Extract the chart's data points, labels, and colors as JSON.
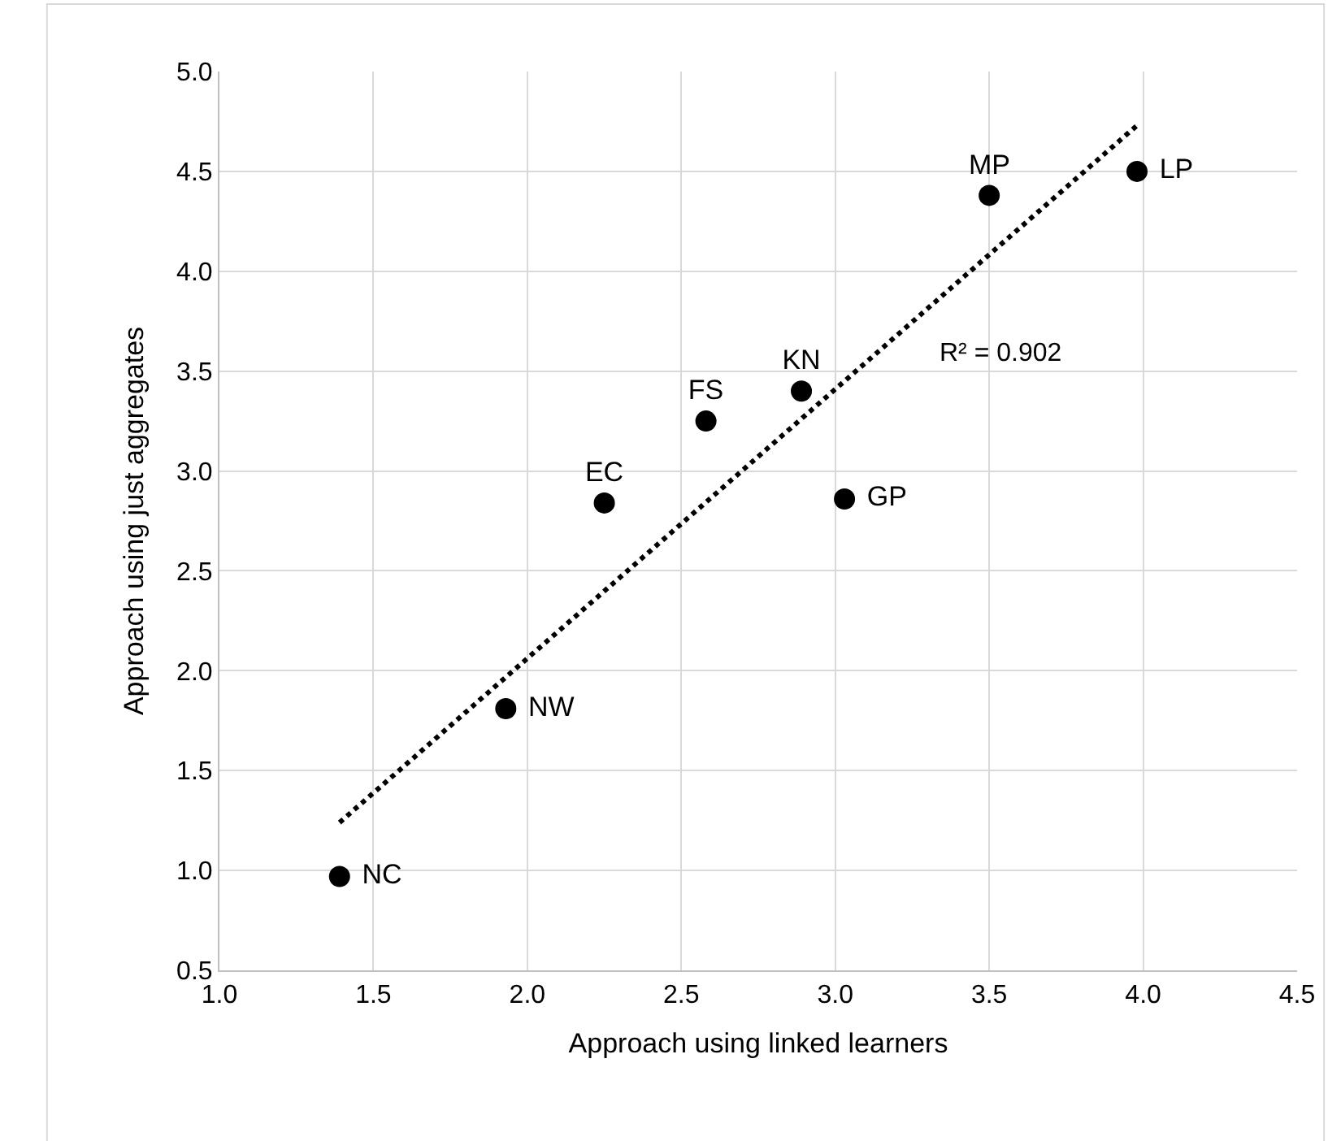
{
  "chart_data": {
    "type": "scatter",
    "xlabel": "Approach using linked learners",
    "ylabel": "Approach using just aggregates",
    "series": [
      {
        "name": "NC",
        "color": "#000000",
        "x": [
          1.39
        ],
        "values": [
          0.97
        ]
      },
      {
        "name": "NW",
        "color": "#000000",
        "x": [
          1.93
        ],
        "values": [
          1.81
        ]
      },
      {
        "name": "EC",
        "color": "#000000",
        "x": [
          2.25
        ],
        "values": [
          2.84
        ]
      },
      {
        "name": "FS",
        "color": "#000000",
        "x": [
          2.58
        ],
        "values": [
          3.25
        ]
      },
      {
        "name": "KN",
        "color": "#000000",
        "x": [
          2.89
        ],
        "values": [
          3.4
        ]
      },
      {
        "name": "GP",
        "color": "#000000",
        "x": [
          3.03
        ],
        "values": [
          2.86
        ]
      },
      {
        "name": "MP",
        "color": "#000000",
        "x": [
          3.5
        ],
        "values": [
          4.38
        ]
      },
      {
        "name": "LP",
        "color": "#000000",
        "x": [
          3.98
        ],
        "values": [
          4.5
        ]
      },
      {
        "type": "line",
        "color": "#000000",
        "line_style": "dotted",
        "marker": "none",
        "x": [
          1.39,
          3.98
        ],
        "values": [
          1.24,
          4.73
        ]
      }
    ],
    "annotations": [
      "R² = 0.902"
    ],
    "xlim": [
      1.0,
      4.5
    ],
    "xticks": [
      {
        "value": 1.0,
        "label": "1.0"
      },
      {
        "value": 1.5,
        "label": "1.5"
      },
      {
        "value": 2.0,
        "label": "2.0"
      },
      {
        "value": 2.5,
        "label": "2.5"
      },
      {
        "value": 3.0,
        "label": "3.0"
      },
      {
        "value": 3.5,
        "label": "3.5"
      },
      {
        "value": 4.0,
        "label": "4.0"
      },
      {
        "value": 4.5,
        "label": "4.5"
      }
    ],
    "ylim": [
      0.5,
      5.0
    ],
    "yticks": [
      0.5,
      {
        "value": 1.0,
        "label": "1.0"
      },
      1.5,
      {
        "value": 2.0,
        "label": "2.0"
      },
      2.5,
      {
        "value": 3.0,
        "label": "3.0"
      },
      3.5,
      {
        "value": 4.0,
        "label": "4.0"
      },
      4.5,
      {
        "value": 5.0,
        "label": "5.0"
      }
    ],
    "grid": true,
    "marker": "circle"
  }
}
